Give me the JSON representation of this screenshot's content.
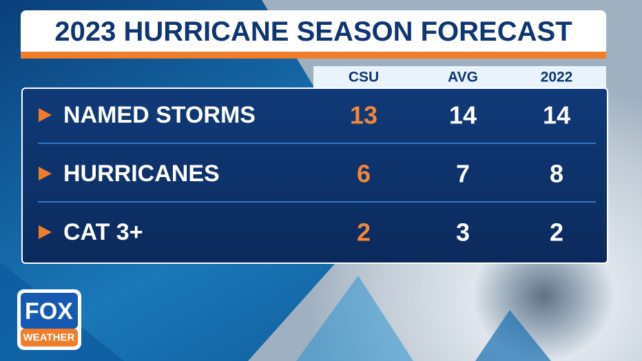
{
  "header": {
    "title": "2023 HURRICANE SEASON FORECAST"
  },
  "table": {
    "columns": [
      "CSU",
      "AVG",
      "2022"
    ],
    "rows": [
      {
        "label": "NAMED STORMS",
        "values": [
          13,
          14,
          14
        ]
      },
      {
        "label": "HURRICANES",
        "values": [
          6,
          7,
          8
        ]
      },
      {
        "label": "CAT 3+",
        "values": [
          2,
          3,
          2
        ]
      }
    ]
  },
  "logo": {
    "top": "FOX",
    "bottom": "WEATHER"
  }
}
